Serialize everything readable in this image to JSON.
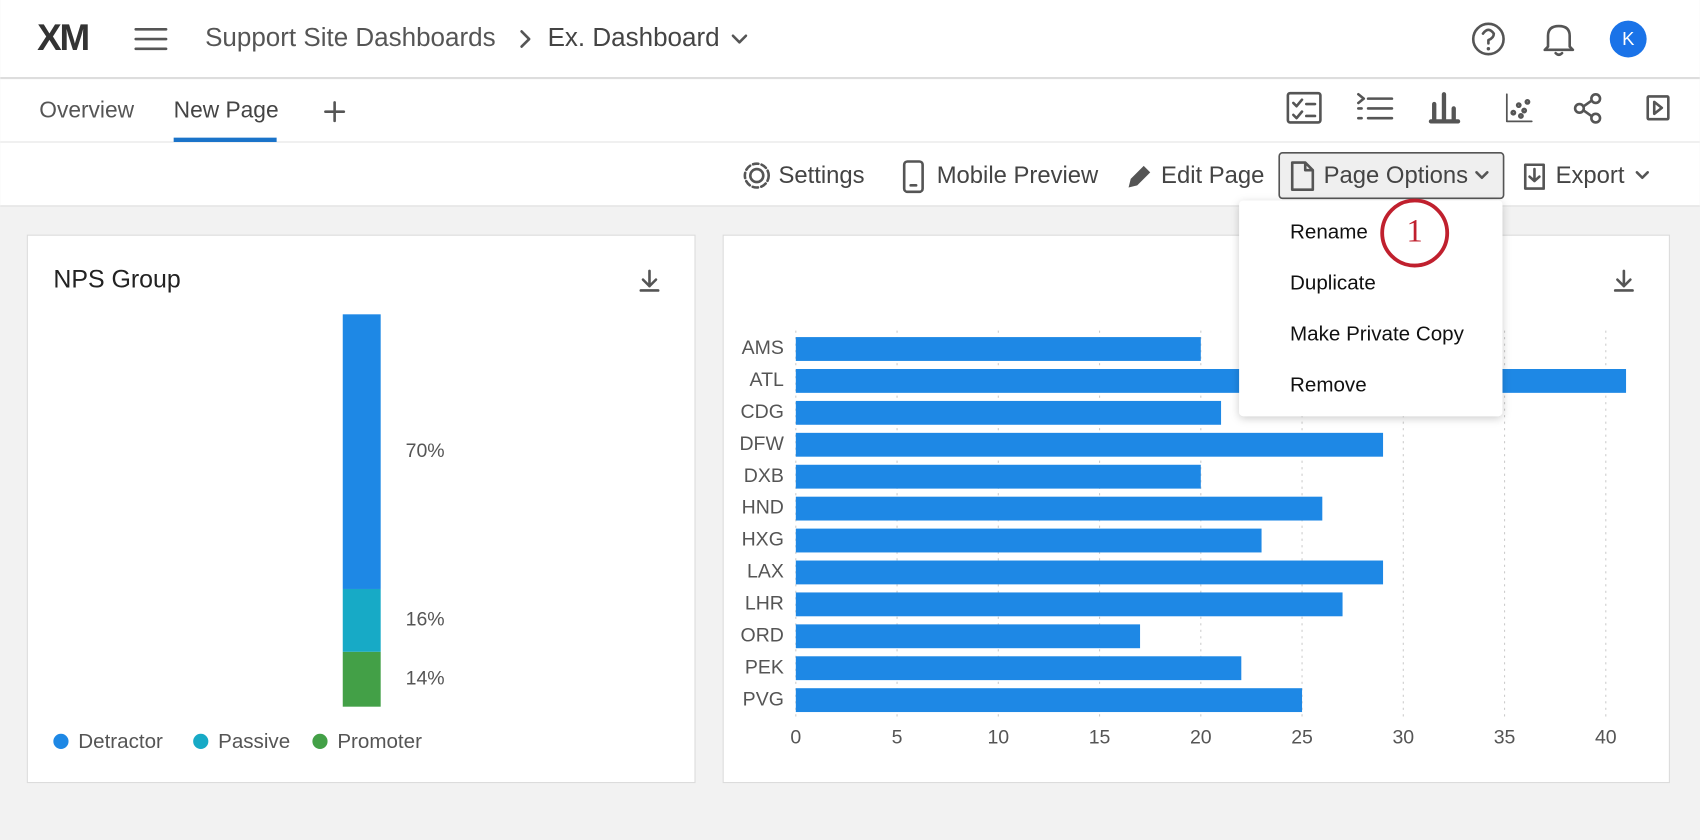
{
  "header": {
    "logo": "XM",
    "breadcrumb": [
      "Support Site Dashboards",
      "Ex. Dashboard"
    ],
    "avatar": "K"
  },
  "tabs": [
    "Overview",
    "New Page"
  ],
  "toolbar": [
    "Settings",
    "Mobile Preview",
    "Edit Page",
    "Page Options",
    "Export"
  ],
  "menu": [
    "Rename",
    "Duplicate",
    "Make Private Copy",
    "Remove"
  ],
  "annotation": "1",
  "chart_data": [
    {
      "type": "stacked-bar",
      "title": "NPS Group",
      "series": [
        {
          "name": "Detractor",
          "color": "#1e88e5",
          "values": [
            70
          ],
          "value_labels": [
            "70%"
          ]
        },
        {
          "name": "Passive",
          "color": "#17aac6",
          "values": [
            16
          ],
          "value_labels": [
            "16%"
          ]
        },
        {
          "name": "Promoter",
          "color": "#43a047",
          "values": [
            14
          ],
          "value_labels": [
            "14%"
          ]
        }
      ]
    },
    {
      "type": "bar",
      "horizontal": true,
      "categories": [
        "AMS",
        "ATL",
        "CDG",
        "DFW",
        "DXB",
        "HND",
        "HXG",
        "LAX",
        "LHR",
        "ORD",
        "PEK",
        "PVG"
      ],
      "values": [
        20,
        41,
        21,
        29,
        20,
        26,
        23,
        29,
        27,
        17,
        22,
        25
      ],
      "color": "#1e88e5",
      "xlim": [
        0,
        41
      ],
      "xticks": [
        0,
        5,
        10,
        15,
        20,
        25,
        30,
        35,
        40
      ],
      "grid": true
    }
  ]
}
